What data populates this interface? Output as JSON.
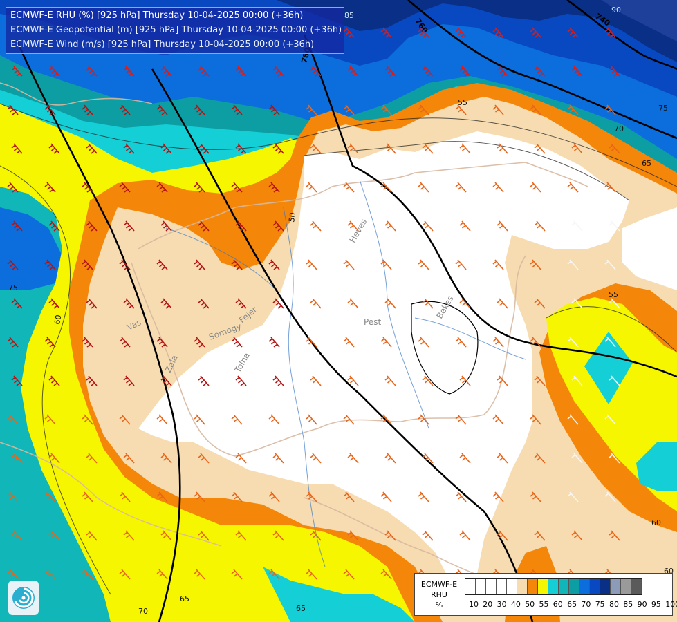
{
  "header": {
    "line1": "ECMWF-E RHU (%) [925 hPa] Thursday 10-04-2025 00:00 (+36h)",
    "line2": "ECMWF-E Geopotential (m) [925 hPa] Thursday 10-04-2025 00:00 (+36h)",
    "line3": "ECMWF-E Wind (m/s) [925 hPa] Thursday 10-04-2025 00:00 (+36h)"
  },
  "legend": {
    "title_line1": "ECMWF-E",
    "title_line2": "RHU",
    "title_line3": "%",
    "colors": [
      "#ffffff",
      "#ffffff",
      "#ffffff",
      "#ffffff",
      "#ffffff",
      "#f6dcb0",
      "#f4870a",
      "#f6f600",
      "#14cfd6",
      "#10b6b8",
      "#0d9ea4",
      "#0b6edc",
      "#0849c2",
      "#0a2f86",
      "#8b9bb8",
      "#9a9a9a",
      "#5a5a5a"
    ],
    "ticks": [
      "10",
      "20",
      "30",
      "40",
      "50",
      "55",
      "60",
      "65",
      "70",
      "75",
      "80",
      "85",
      "90",
      "95",
      "100"
    ]
  },
  "contour_labels": {
    "rhu": [
      "50",
      "55",
      "60",
      "65",
      "70",
      "75",
      "85",
      "90",
      "55",
      "60",
      "65",
      "70",
      "75",
      "60",
      "65"
    ],
    "geopotential": [
      "760",
      "740",
      "780"
    ]
  },
  "place_labels": [
    "Heves",
    "Pest",
    "Bekes",
    "Vas",
    "Zala",
    "Somogy",
    "Fejer",
    "Tolna"
  ],
  "colors": {
    "rhu_white": "#ffffff",
    "rhu_55": "#f6dcb0",
    "rhu_60": "#f4870a",
    "rhu_65": "#f6f600",
    "rhu_70": "#14cfd6",
    "rhu_75": "#10b6b8",
    "rhu_80": "#0b6edc",
    "rhu_85": "#0849c2",
    "rhu_90": "#0a2f86",
    "barb_low": "#e8651b",
    "barb_mid": "#d41e1e",
    "barb_high": "#b31414"
  }
}
